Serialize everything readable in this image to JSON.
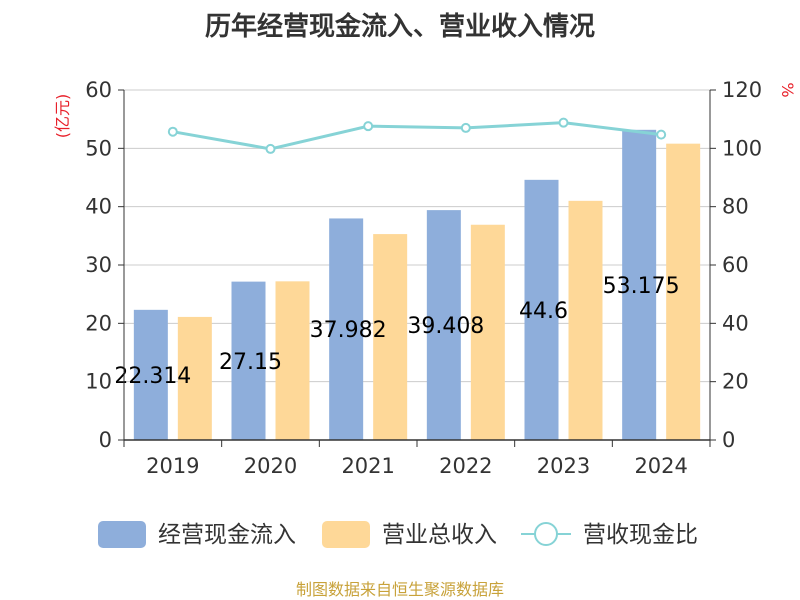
{
  "chart_data": {
    "type": "bar",
    "title": "历年经营现金流入、营业收入情况",
    "categories": [
      "2019",
      "2020",
      "2021",
      "2022",
      "2023",
      "2024"
    ],
    "series": [
      {
        "name": "经营现金流入",
        "type": "bar",
        "axis": "left",
        "color": "#8eaedb",
        "values": [
          22.314,
          27.15,
          37.982,
          39.408,
          44.6,
          53.175
        ],
        "labels": [
          "22.314",
          "27.15",
          "37.982",
          "39.408",
          "44.6",
          "53.175"
        ]
      },
      {
        "name": "营业总收入",
        "type": "bar",
        "axis": "left",
        "color": "#fed898",
        "values": [
          21.1,
          27.2,
          35.3,
          36.9,
          41.0,
          50.8
        ]
      },
      {
        "name": "营收现金比",
        "type": "line",
        "axis": "right",
        "color": "#86d3d6",
        "values": [
          105.7,
          99.8,
          107.6,
          107.0,
          108.8,
          104.7
        ]
      }
    ],
    "y_left": {
      "unit": "(亿元)",
      "ylim": [
        0,
        60
      ],
      "ticks": [
        "0",
        "10",
        "20",
        "30",
        "40",
        "50",
        "60"
      ]
    },
    "y_right": {
      "unit": "%",
      "ylim": [
        0,
        120
      ],
      "ticks": [
        "0",
        "20",
        "40",
        "60",
        "80",
        "100",
        "120"
      ]
    },
    "grid": true,
    "legend": "bottom",
    "unit_color": "#e8202a"
  },
  "source": {
    "text": "制图数据来自恒生聚源数据库",
    "color": "#c8a23a"
  }
}
